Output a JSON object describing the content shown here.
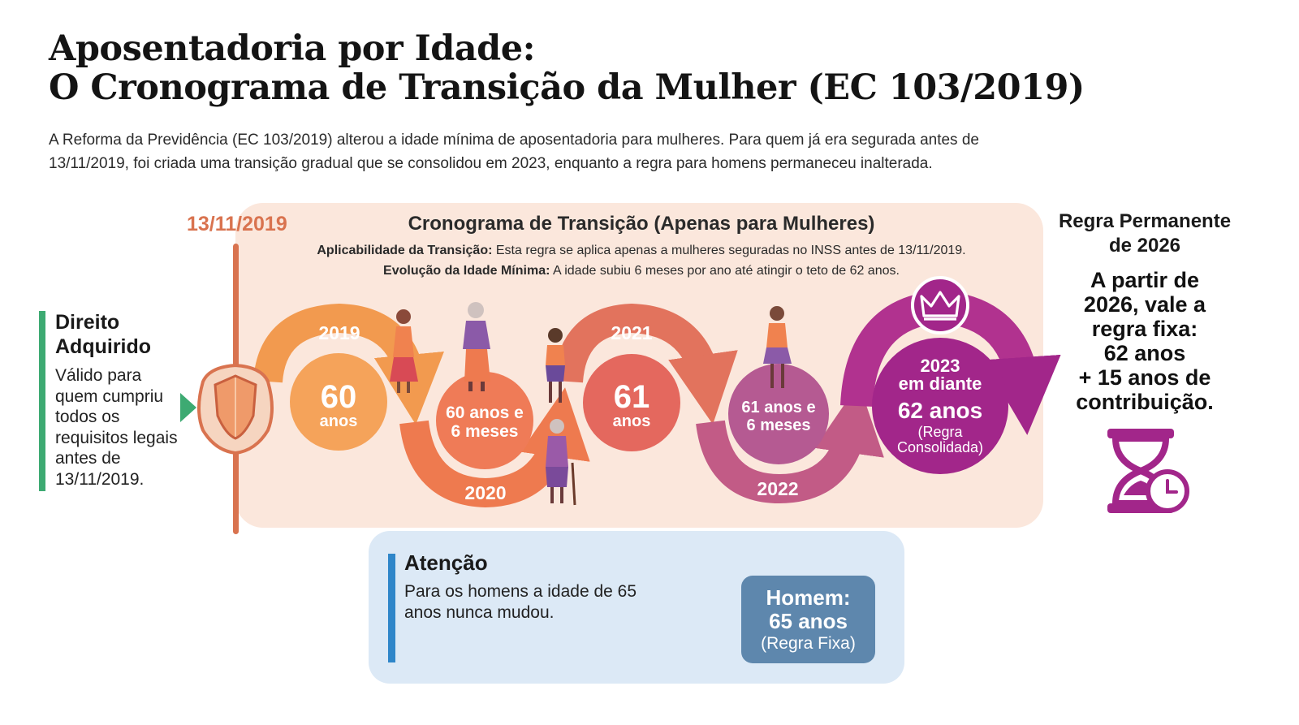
{
  "title": {
    "line1": "Aposentadoria por Idade:",
    "line2": "O Cronograma de Transição da Mulher (EC 103/2019)"
  },
  "intro": "A Reforma da Previdência (EC 103/2019) alterou a idade mínima de aposentadoria para mulheres. Para quem já era segurada antes de 13/11/2019, foi criada uma transição gradual que se consolidou em 2023, enquanto a regra para homens permaneceu inalterada.",
  "cutoff_date": "13/11/2019",
  "transition": {
    "title": "Cronograma de Transição (Apenas para Mulheres)",
    "applicability_label": "Aplicabilidade da Transição:",
    "applicability_text": "Esta regra se aplica apenas a mulheres seguradas no INSS antes de 13/11/2019.",
    "evolution_label": "Evolução da Idade Mínima:",
    "evolution_text": "A idade subiu 6 meses por ano até atingir o teto de 62 anos.",
    "steps": [
      {
        "year": "2019",
        "line1": "60",
        "line2": "anos"
      },
      {
        "year": "2020",
        "line1": "60 anos e",
        "line2": "6 meses"
      },
      {
        "year": "2021",
        "line1": "61",
        "line2": "anos"
      },
      {
        "year": "2022",
        "line1": "61 anos e",
        "line2": "6 meses"
      },
      {
        "year_line1": "2023",
        "year_line2": "em diante",
        "line1": "62 anos",
        "line2": "(Regra",
        "line3": "Consolidada)"
      }
    ]
  },
  "acquired_right": {
    "title_line1": "Direito",
    "title_line2": "Adquirido",
    "text": "Válido para quem cumpriu todos os requisitos legais antes de 13/11/2019."
  },
  "permanent_rule": {
    "heading_line1": "Regra Permanente",
    "heading_line2": "de 2026",
    "line1": "A partir de",
    "line2": "2026, vale a",
    "line3": "regra fixa:",
    "line4": "62 anos",
    "line5": "+ 15 anos de",
    "line6": "contribuição."
  },
  "attention": {
    "title": "Atenção",
    "text": "Para os homens a idade de 65 anos nunca mudou.",
    "man_line1": "Homem:",
    "man_line2": "65 anos",
    "man_line3": "(Regra Fixa)"
  },
  "colors": {
    "orange": "#f29a4f",
    "orange_deep": "#ee7a4f",
    "rose": "#c25b86",
    "purple": "#b1328f",
    "purple_dark": "#a2268a",
    "green": "#3daa72",
    "blue": "#2f86c9",
    "panel_bg": "#fbe7dc",
    "date_color": "#d9734f"
  },
  "icons": {
    "shield": "shield-emblem-icon",
    "crown": "crown-icon",
    "hourglass": "hourglass-clock-icon"
  }
}
